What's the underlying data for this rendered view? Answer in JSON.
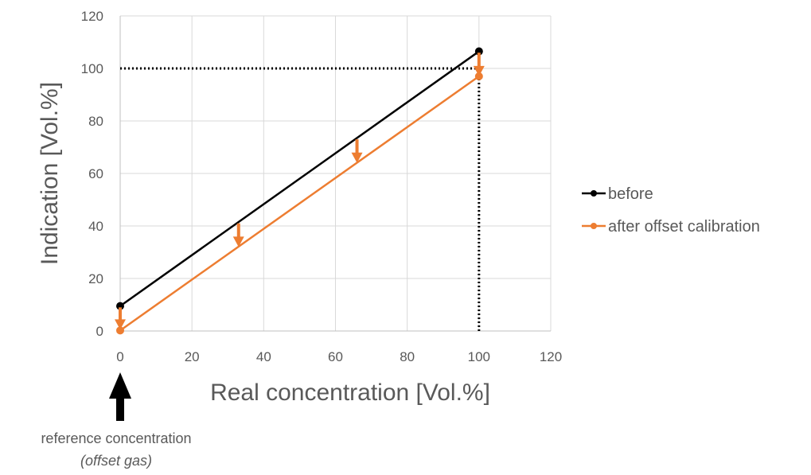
{
  "chart_data": {
    "type": "line",
    "title": "",
    "xlabel": "Real concentration [Vol.%]",
    "ylabel": "Indication [Vol.%]",
    "xlim": [
      0,
      120
    ],
    "ylim": [
      0,
      120
    ],
    "xticks": [
      0,
      20,
      40,
      60,
      80,
      100,
      120
    ],
    "yticks": [
      0,
      20,
      40,
      60,
      80,
      100,
      120
    ],
    "grid": true,
    "legend_position": "right",
    "series": [
      {
        "name": "before",
        "color": "#000000",
        "x": [
          0,
          100
        ],
        "y": [
          9.5,
          106.5
        ]
      },
      {
        "name": "after offset calibration",
        "color": "#ED7D31",
        "x": [
          0,
          100
        ],
        "y": [
          0.2,
          97
        ]
      }
    ],
    "reference_lines": [
      {
        "from": [
          0,
          100
        ],
        "to": [
          100,
          100
        ],
        "style": "dotted",
        "color": "#000000"
      },
      {
        "from": [
          100,
          0
        ],
        "to": [
          100,
          106.5
        ],
        "style": "dotted",
        "color": "#000000"
      }
    ],
    "shift_arrows": [
      {
        "x": 0,
        "y_from": 9,
        "y_to": 0.5,
        "color": "#ED7D31"
      },
      {
        "x": 33,
        "y_from": 41,
        "y_to": 32,
        "color": "#ED7D31"
      },
      {
        "x": 66,
        "y_from": 73,
        "y_to": 64,
        "color": "#ED7D31"
      },
      {
        "x": 100,
        "y_from": 106,
        "y_to": 97,
        "color": "#ED7D31"
      }
    ],
    "annotation": {
      "x": 0,
      "line1": "reference concentration",
      "line2": "(offset gas)"
    }
  }
}
